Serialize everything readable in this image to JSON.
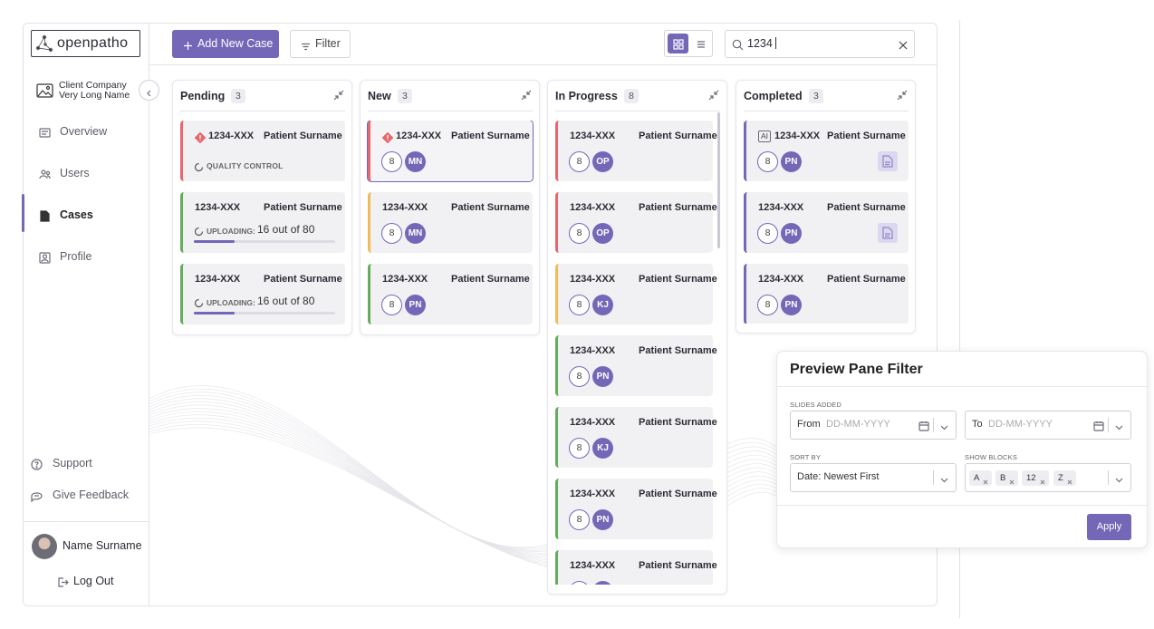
{
  "logo": "openpatho",
  "toolbar": {
    "add_case": "Add New Case",
    "filter": "Filter",
    "search": "1234"
  },
  "sidebar": {
    "company": "Client Company Very Long Name",
    "nav": [
      "Overview",
      "Users",
      "Cases",
      "Profile"
    ],
    "active": 2,
    "support": "Support",
    "feedback": "Give Feedback",
    "user": "Name Surname",
    "logout": "Log Out"
  },
  "columns": [
    {
      "title": "Pending",
      "count": 3,
      "cards": [
        {
          "id": "1234-XXX",
          "patient": "Patient Surname",
          "stripe": "#e8666d",
          "warning": true,
          "status": "QUALITY CONTROL"
        },
        {
          "id": "1234-XXX",
          "patient": "Patient Surname",
          "stripe": "#63ad5c",
          "status": "UPLOADING:",
          "progress": "16 out of 80"
        },
        {
          "id": "1234-XXX",
          "patient": "Patient Surname",
          "stripe": "#63ad5c",
          "status": "UPLOADING:",
          "progress": "16 out of 80"
        }
      ]
    },
    {
      "title": "New",
      "count": 3,
      "cards": [
        {
          "id": "1234-XXX",
          "patient": "Patient Surname",
          "stripe": "#e8666d",
          "warning": true,
          "selected": true,
          "slides": 8,
          "initials": "MN"
        },
        {
          "id": "1234-XXX",
          "patient": "Patient Surname",
          "stripe": "#f2bb57",
          "slides": 8,
          "initials": "MN"
        },
        {
          "id": "1234-XXX",
          "patient": "Patient Surname",
          "stripe": "#63ad5c",
          "slides": 8,
          "initials": "PN"
        }
      ]
    },
    {
      "title": "In Progress",
      "count": 8,
      "cards": [
        {
          "id": "1234-XXX",
          "patient": "Patient Surname",
          "stripe": "#e8666d",
          "slides": 8,
          "initials": "OP"
        },
        {
          "id": "1234-XXX",
          "patient": "Patient Surname",
          "stripe": "#e8666d",
          "slides": 8,
          "initials": "OP"
        },
        {
          "id": "1234-XXX",
          "patient": "Patient Surname",
          "stripe": "#f2bb57",
          "slides": 8,
          "initials": "KJ"
        },
        {
          "id": "1234-XXX",
          "patient": "Patient Surname",
          "stripe": "#63ad5c",
          "slides": 8,
          "initials": "PN"
        },
        {
          "id": "1234-XXX",
          "patient": "Patient Surname",
          "stripe": "#63ad5c",
          "slides": 8,
          "initials": "KJ"
        },
        {
          "id": "1234-XXX",
          "patient": "Patient Surname",
          "stripe": "#63ad5c",
          "slides": 8,
          "initials": "PN"
        },
        {
          "id": "1234-XXX",
          "patient": "Patient Surname",
          "stripe": "#63ad5c"
        }
      ]
    },
    {
      "title": "Completed",
      "count": 3,
      "cards": [
        {
          "id": "1234-XXX",
          "patient": "Patient Surname",
          "stripe": "#7467b8",
          "ai": "AI",
          "slides": 8,
          "initials": "PN",
          "report": true
        },
        {
          "id": "1234-XXX",
          "patient": "Patient Surname",
          "stripe": "#7467b8",
          "slides": 8,
          "initials": "PN",
          "report": true
        },
        {
          "id": "1234-XXX",
          "patient": "Patient Surname",
          "stripe": "#7467b8",
          "slides": 8,
          "initials": "PN"
        }
      ]
    }
  ],
  "filter_pane": {
    "title": "Preview Pane Filter",
    "slides_added": "SLIDES ADDED",
    "from": "From",
    "from_placeholder": "DD-MM-YYYY",
    "to": "To",
    "to_placeholder": "DD-MM-YYYY",
    "sort_by": "SORT BY",
    "sort_value": "Date: Newest First",
    "show_blocks": "SHOW BLOCKS",
    "blocks": [
      "A",
      "B",
      "12",
      "Z"
    ],
    "apply": "Apply"
  }
}
